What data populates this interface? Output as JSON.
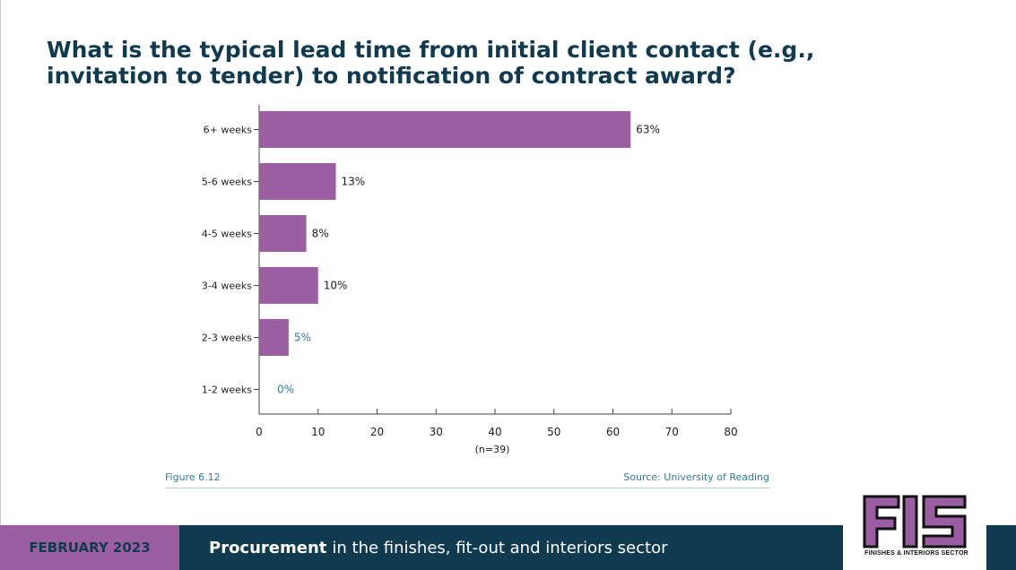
{
  "title": "What is the typical lead time from initial client contact (e.g., invitation to tender) to notification of contract award?",
  "figure_label": "Figure 6.12",
  "source": "Source: University of Reading",
  "footer": {
    "date": "FEBRUARY 2023",
    "topic_bold": "Procurement",
    "topic_rest": "in the finishes, fit-out and interiors sector"
  },
  "logo": {
    "subtitle": "FINISHES & INTERIORS SECTOR"
  },
  "colors": {
    "bar": "#9b5ea3",
    "title": "#0f3a4f",
    "footer_bg": "#0f3a4f",
    "accent": "#2e7d9a"
  },
  "chart_data": {
    "type": "bar",
    "orientation": "horizontal",
    "categories": [
      "6+ weeks",
      "5-6 weeks",
      "4-5 weeks",
      "3-4 weeks",
      "2-3 weeks",
      "1-2 weeks"
    ],
    "values": [
      63,
      13,
      8,
      10,
      5,
      0
    ],
    "value_labels": [
      "63%",
      "13%",
      "8%",
      "10%",
      "5%",
      "0%"
    ],
    "xlabel": "(n=39)",
    "xlim": [
      0,
      80
    ],
    "xticks": [
      0,
      10,
      20,
      30,
      40,
      50,
      60,
      70,
      80
    ],
    "grid": false,
    "legend": "none"
  }
}
